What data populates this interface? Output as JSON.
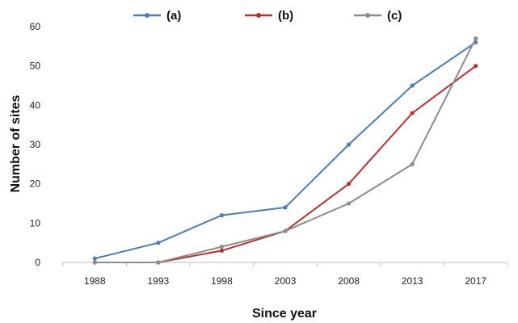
{
  "chart_data": {
    "type": "line",
    "xlabel": "Since year",
    "ylabel": "Number of sites",
    "categories": [
      "1988",
      "1993",
      "1998",
      "2003",
      "2008",
      "2013",
      "2017"
    ],
    "ylim": [
      0,
      60
    ],
    "yticks": [
      "0",
      "10",
      "20",
      "30",
      "40",
      "50",
      "60"
    ],
    "grid": false,
    "legend_position": "top",
    "series": [
      {
        "name": "(a)",
        "color": "#4a7ebb",
        "values": [
          1,
          5,
          12,
          14,
          30,
          45,
          56
        ]
      },
      {
        "name": "(b)",
        "color": "#c0302b",
        "values": [
          0,
          0,
          3,
          8,
          20,
          38,
          50
        ]
      },
      {
        "name": "(c)",
        "color": "#8c8c8c",
        "values": [
          0,
          0,
          4,
          8,
          15,
          25,
          57
        ]
      }
    ]
  }
}
